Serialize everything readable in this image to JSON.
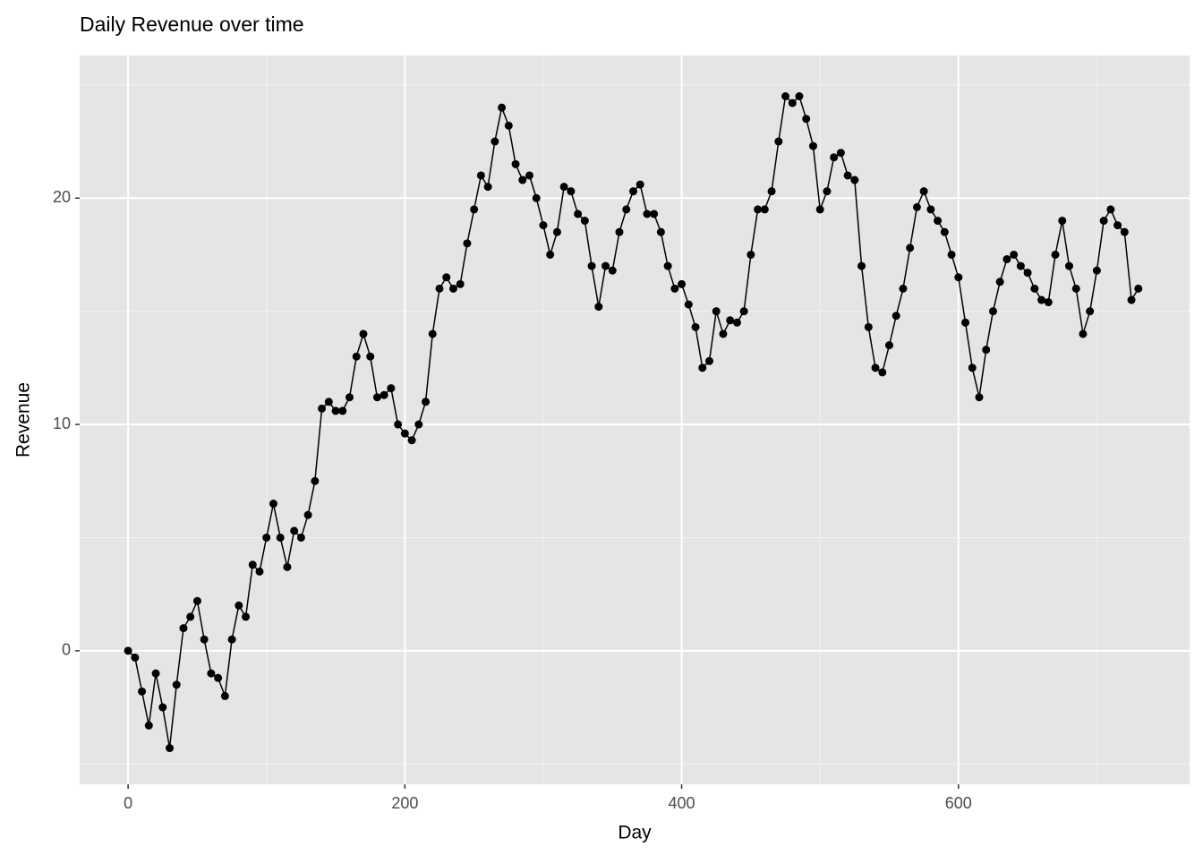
{
  "chart_data": {
    "type": "line",
    "title": "Daily Revenue over time",
    "x_label": "Day",
    "y_label": "Revenue",
    "x": [
      0,
      5,
      10,
      15,
      20,
      25,
      30,
      35,
      40,
      45,
      50,
      55,
      60,
      65,
      70,
      75,
      80,
      85,
      90,
      95,
      100,
      105,
      110,
      115,
      120,
      125,
      130,
      135,
      140,
      145,
      150,
      155,
      160,
      165,
      170,
      175,
      180,
      185,
      190,
      195,
      200,
      205,
      210,
      215,
      220,
      225,
      230,
      235,
      240,
      245,
      250,
      255,
      260,
      265,
      270,
      275,
      280,
      285,
      290,
      295,
      300,
      305,
      310,
      315,
      320,
      325,
      330,
      335,
      340,
      345,
      350,
      355,
      360,
      365,
      370,
      375,
      380,
      385,
      390,
      395,
      400,
      405,
      410,
      415,
      420,
      425,
      430,
      435,
      440,
      445,
      450,
      455,
      460,
      465,
      470,
      475,
      480,
      485,
      490,
      495,
      500,
      505,
      510,
      515,
      520,
      525,
      530,
      535,
      540,
      545,
      550,
      555,
      560,
      565,
      570,
      575,
      580,
      585,
      590,
      595,
      600,
      605,
      610,
      615,
      620,
      625,
      630,
      635,
      640,
      645,
      650,
      655,
      660,
      665,
      670,
      675,
      680,
      685,
      690,
      695,
      700,
      705,
      710,
      715,
      720,
      725,
      730
    ],
    "series": [
      {
        "name": "Revenue",
        "color": "#000000",
        "markers": true,
        "values": [
          0,
          -0.3,
          -1.8,
          -3.3,
          -1,
          -2.5,
          -4.3,
          -1.5,
          1,
          1.5,
          2.2,
          0.5,
          -1,
          -1.2,
          -2,
          0.5,
          2,
          1.5,
          3.8,
          3.5,
          5,
          6.5,
          5,
          3.7,
          5.3,
          5,
          6,
          7.5,
          10.7,
          11,
          10.6,
          10.6,
          11.2,
          13,
          14,
          13,
          11.2,
          11.3,
          11.6,
          10,
          9.6,
          9.3,
          10,
          11,
          14,
          16,
          16.5,
          16,
          16.2,
          18,
          19.5,
          21,
          20.5,
          22.5,
          24,
          23.2,
          21.5,
          20.8,
          21,
          20,
          18.8,
          17.5,
          18.5,
          20.5,
          20.3,
          19.3,
          19,
          17,
          15.2,
          17,
          16.8,
          18.5,
          19.5,
          20.3,
          20.6,
          19.3,
          19.3,
          18.5,
          17,
          16,
          16.2,
          15.3,
          14.3,
          12.5,
          12.8,
          15,
          14,
          14.6,
          14.5,
          15,
          17.5,
          19.5,
          19.5,
          20.3,
          22.5,
          24.5,
          24.2,
          24.5,
          23.5,
          22.3,
          19.5,
          20.3,
          21.8,
          22,
          21,
          20.8,
          17,
          14.3,
          12.5,
          12.3,
          13.5,
          14.8,
          16,
          17.8,
          19.6,
          20.3,
          19.5,
          19,
          18.5,
          17.5,
          16.5,
          14.5,
          12.5,
          11.2,
          13.3,
          15,
          16.3,
          17.3,
          17.5,
          17,
          16.7,
          16,
          15.5,
          15.4,
          17.5,
          19,
          17,
          16,
          14,
          15,
          16.8,
          19,
          19.5,
          18.8,
          18.5,
          15.5,
          16
        ]
      }
    ],
    "xlim": [
      -35,
      767
    ],
    "xticks": [
      0,
      200,
      400,
      600
    ],
    "x_minor_ticks": [
      100,
      300,
      500,
      700
    ],
    "ylim": [
      -5.9,
      26.3
    ],
    "yticks": [
      0,
      10,
      20
    ],
    "y_minor_ticks": [
      -5,
      5,
      15,
      25
    ],
    "grid": true
  }
}
